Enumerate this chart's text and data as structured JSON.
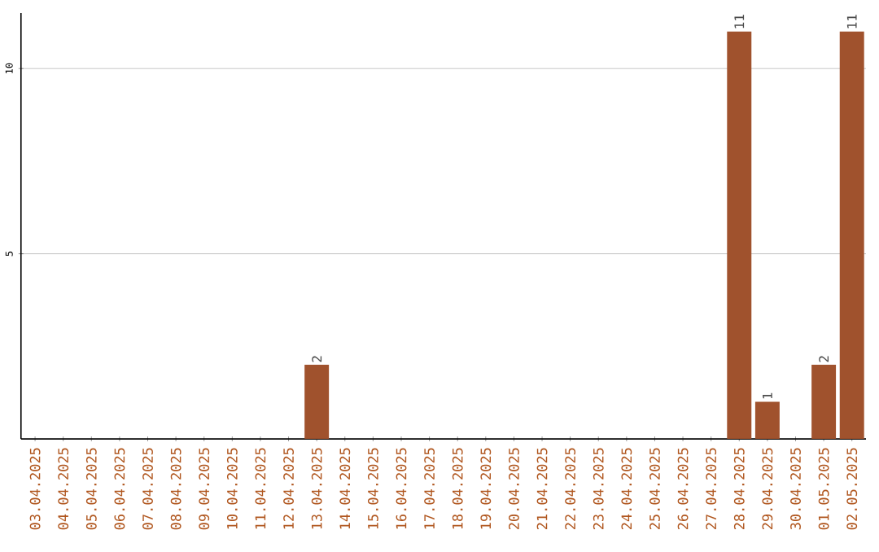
{
  "chart_data": {
    "type": "bar",
    "categories": [
      "03.04.2025",
      "04.04.2025",
      "05.04.2025",
      "06.04.2025",
      "07.04.2025",
      "08.04.2025",
      "09.04.2025",
      "10.04.2025",
      "11.04.2025",
      "12.04.2025",
      "13.04.2025",
      "14.04.2025",
      "15.04.2025",
      "16.04.2025",
      "17.04.2025",
      "18.04.2025",
      "19.04.2025",
      "20.04.2025",
      "21.04.2025",
      "22.04.2025",
      "23.04.2025",
      "24.04.2025",
      "25.04.2025",
      "26.04.2025",
      "27.04.2025",
      "28.04.2025",
      "29.04.2025",
      "30.04.2025",
      "01.05.2025",
      "02.05.2025"
    ],
    "values": [
      0,
      0,
      0,
      0,
      0,
      0,
      0,
      0,
      0,
      0,
      2,
      0,
      0,
      0,
      0,
      0,
      0,
      0,
      0,
      0,
      0,
      0,
      0,
      0,
      0,
      11,
      1,
      0,
      2,
      11
    ],
    "value_labels": [
      null,
      null,
      null,
      null,
      null,
      null,
      null,
      null,
      null,
      null,
      "2",
      null,
      null,
      null,
      null,
      null,
      null,
      null,
      null,
      null,
      null,
      null,
      null,
      null,
      null,
      "11",
      "1",
      null,
      "2",
      "11"
    ],
    "color": "#a0522d",
    "ylim": [
      0,
      11.5
    ],
    "yticks": [
      5,
      10
    ],
    "grid": "y"
  }
}
